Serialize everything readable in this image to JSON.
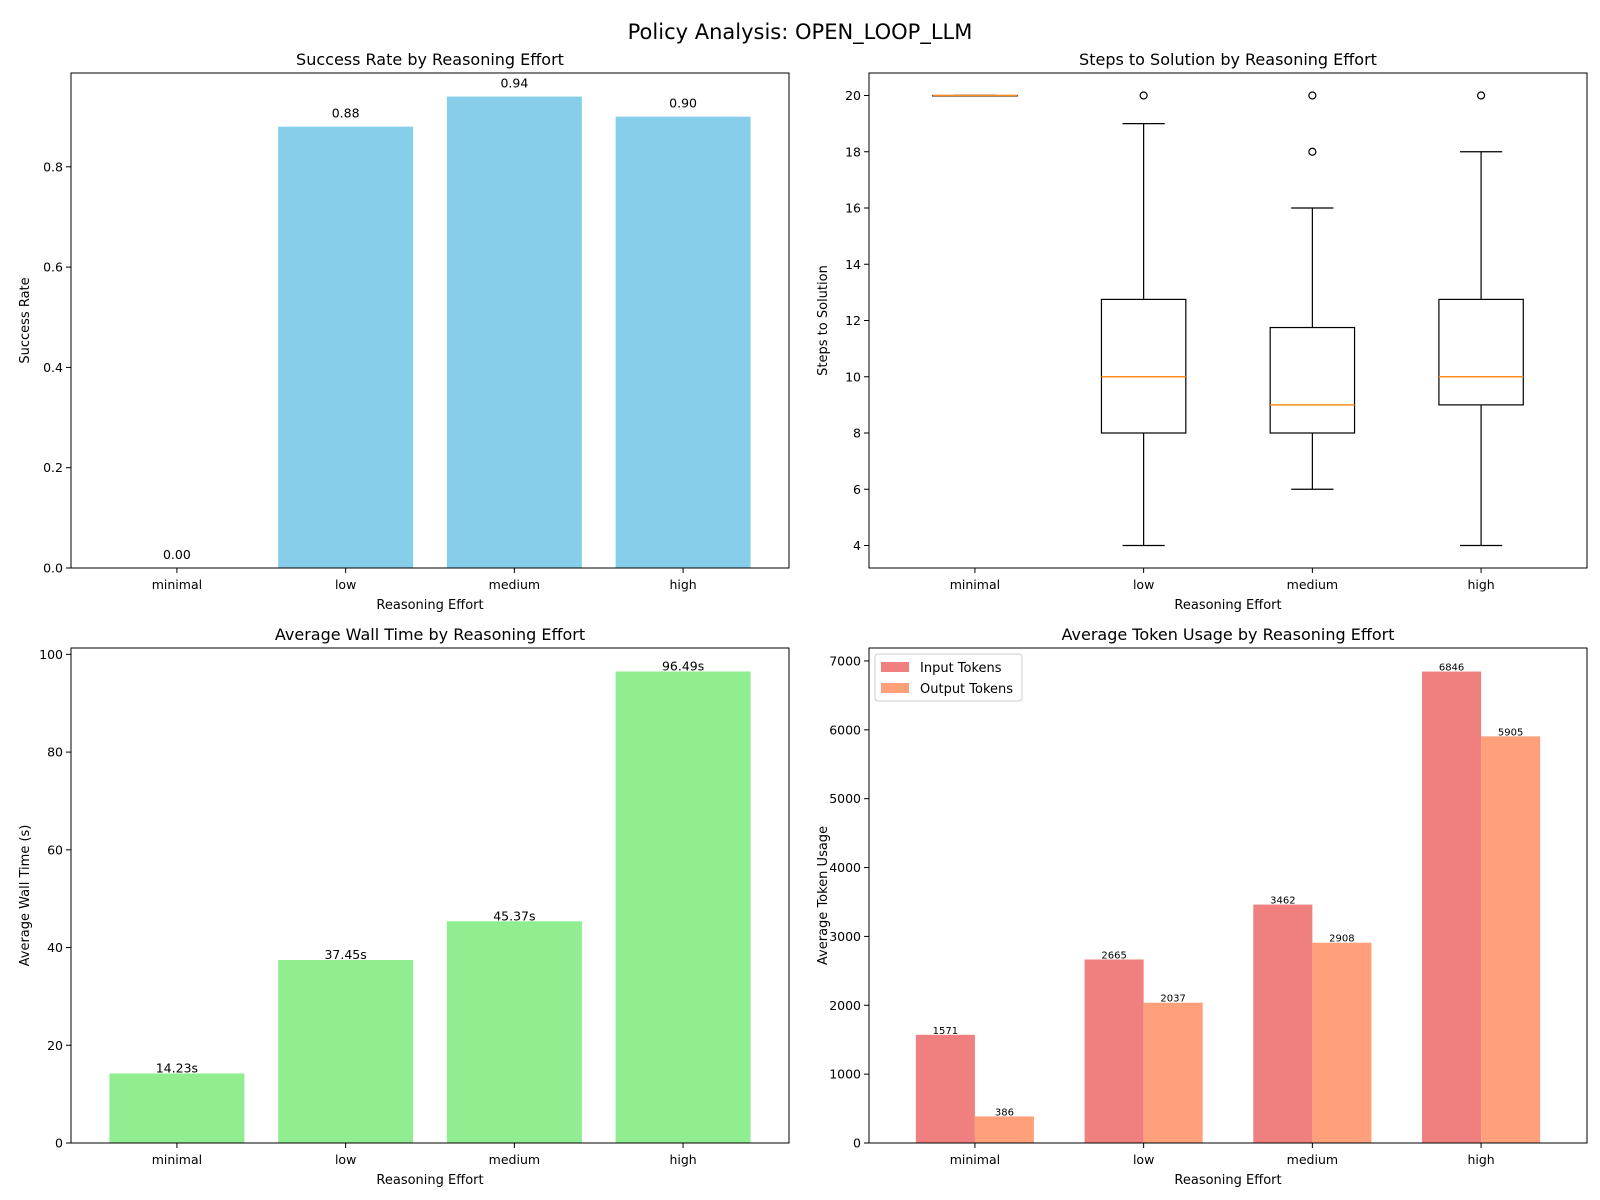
{
  "figure": {
    "title": "Policy Analysis: OPEN_LOOP_LLM"
  },
  "colors": {
    "skyblue": "#87ceeb",
    "lightgreen": "#90ee90",
    "input": "#f08080",
    "output": "#ffa07a",
    "median": "#ff8c1a",
    "ink": "#000000"
  },
  "chart_data": [
    {
      "type": "bar",
      "title": "Success Rate by Reasoning Effort",
      "xlabel": "Reasoning Effort",
      "ylabel": "Success Rate",
      "categories": [
        "minimal",
        "low",
        "medium",
        "high"
      ],
      "values": [
        0.0,
        0.88,
        0.94,
        0.9
      ],
      "value_labels": [
        "0.00",
        "0.88",
        "0.94",
        "0.90"
      ],
      "ylim": [
        0,
        0.987
      ],
      "yticks": [
        0.0,
        0.2,
        0.4,
        0.6,
        0.8
      ],
      "ytick_labels": [
        "0.0",
        "0.2",
        "0.4",
        "0.6",
        "0.8"
      ],
      "color": "skyblue",
      "grid": false
    },
    {
      "type": "box",
      "title": "Steps to Solution by Reasoning Effort",
      "xlabel": "Reasoning Effort",
      "ylabel": "Steps to Solution",
      "categories": [
        "minimal",
        "low",
        "medium",
        "high"
      ],
      "boxes": [
        {
          "whisker_low": 20,
          "q1": 20,
          "median": 20,
          "q3": 20,
          "whisker_high": 20,
          "fliers": []
        },
        {
          "whisker_low": 4,
          "q1": 8,
          "median": 10,
          "q3": 12.75,
          "whisker_high": 19,
          "fliers": [
            20
          ]
        },
        {
          "whisker_low": 6,
          "q1": 8,
          "median": 9,
          "q3": 11.75,
          "whisker_high": 16,
          "fliers": [
            18,
            20
          ]
        },
        {
          "whisker_low": 4,
          "q1": 9,
          "median": 10,
          "q3": 12.75,
          "whisker_high": 18,
          "fliers": [
            20
          ]
        }
      ],
      "ylim": [
        3.2,
        20.8
      ],
      "yticks": [
        4,
        6,
        8,
        10,
        12,
        14,
        16,
        18,
        20
      ],
      "ytick_labels": [
        "4",
        "6",
        "8",
        "10",
        "12",
        "14",
        "16",
        "18",
        "20"
      ],
      "grid": false
    },
    {
      "type": "bar",
      "title": "Average Wall Time by Reasoning Effort",
      "xlabel": "Reasoning Effort",
      "ylabel": "Average Wall Time (s)",
      "categories": [
        "minimal",
        "low",
        "medium",
        "high"
      ],
      "values": [
        14.23,
        37.45,
        45.37,
        96.49
      ],
      "value_labels": [
        "14.23s",
        "37.45s",
        "45.37s",
        "96.49s"
      ],
      "ylim": [
        0,
        101.3
      ],
      "yticks": [
        0,
        20,
        40,
        60,
        80,
        100
      ],
      "ytick_labels": [
        "0",
        "20",
        "40",
        "60",
        "80",
        "100"
      ],
      "color": "lightgreen",
      "grid": false
    },
    {
      "type": "bar",
      "title": "Average Token Usage by Reasoning Effort",
      "xlabel": "Reasoning Effort",
      "ylabel": "Average Token Usage",
      "categories": [
        "minimal",
        "low",
        "medium",
        "high"
      ],
      "series": [
        {
          "name": "Input Tokens",
          "values": [
            1571,
            2665,
            3462,
            6846
          ],
          "value_labels": [
            "1571",
            "2665",
            "3462",
            "6846"
          ],
          "color": "input"
        },
        {
          "name": "Output Tokens",
          "values": [
            386,
            2037,
            2908,
            5905
          ],
          "value_labels": [
            "386",
            "2037",
            "2908",
            "5905"
          ],
          "color": "output"
        }
      ],
      "ylim": [
        0,
        7188
      ],
      "yticks": [
        0,
        1000,
        2000,
        3000,
        4000,
        5000,
        6000,
        7000
      ],
      "ytick_labels": [
        "0",
        "1000",
        "2000",
        "3000",
        "4000",
        "5000",
        "6000",
        "7000"
      ],
      "legend": "top-left",
      "grid": false
    }
  ]
}
